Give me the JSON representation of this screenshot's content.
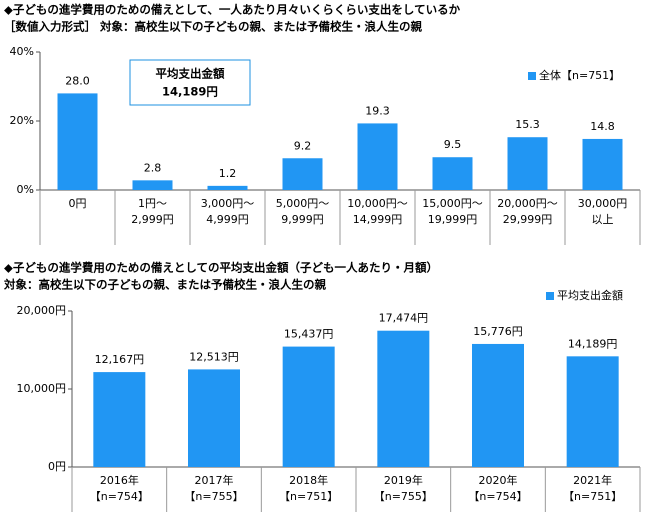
{
  "chart_data": [
    {
      "type": "bar",
      "title": "◆子どもの進学費用のための備えとして、一人あたり月々いくらくらい支出をしているか",
      "subtitle": "［数値入力形式］ 対象：高校生以下の子どもの親、または予備校生・浪人生の親",
      "categories": [
        [
          "0円"
        ],
        [
          "1円～",
          "2,999円"
        ],
        [
          "3,000円～",
          "4,999円"
        ],
        [
          "5,000円～",
          "9,999円"
        ],
        [
          "10,000円～",
          "14,999円"
        ],
        [
          "15,000円～",
          "19,999円"
        ],
        [
          "20,000円～",
          "29,999円"
        ],
        [
          "30,000円",
          "以上"
        ]
      ],
      "series": [
        {
          "name": "全体【n=751】",
          "color": "#2196f3",
          "values": [
            28.0,
            2.8,
            1.2,
            9.2,
            19.3,
            9.5,
            15.3,
            14.8
          ],
          "value_labels": [
            "28.0",
            "2.8",
            "1.2",
            "9.2",
            "19.3",
            "9.5",
            "15.3",
            "14.8"
          ]
        }
      ],
      "annotations": [
        "平均支出金額",
        "14,189円"
      ],
      "ylim": [
        0,
        40
      ],
      "yticks": [
        {
          "value": 0,
          "label": "0%"
        },
        {
          "value": 20,
          "label": "20%"
        },
        {
          "value": 40,
          "label": "40%"
        }
      ],
      "grid": false,
      "legend": "top-right"
    },
    {
      "type": "bar",
      "title": "◆子どもの進学費用のための備えとしての平均支出金額（子ども一人あたり・月額）",
      "subtitle": "対象：高校生以下の子どもの親、または予備校生・浪人生の親",
      "categories": [
        [
          "2016年",
          "【n=754】"
        ],
        [
          "2017年",
          "【n=755】"
        ],
        [
          "2018年",
          "【n=751】"
        ],
        [
          "2019年",
          "【n=755】"
        ],
        [
          "2020年",
          "【n=754】"
        ],
        [
          "2021年",
          "【n=751】"
        ]
      ],
      "series": [
        {
          "name": "平均支出金額",
          "color": "#2196f3",
          "values": [
            12167,
            12513,
            15437,
            17474,
            15776,
            14189
          ],
          "value_labels": [
            "12,167円",
            "12,513円",
            "15,437円",
            "17,474円",
            "15,776円",
            "14,189円"
          ]
        }
      ],
      "ylim": [
        0,
        20000
      ],
      "yticks": [
        {
          "value": 0,
          "label": "0円"
        },
        {
          "value": 10000,
          "label": "10,000円"
        },
        {
          "value": 20000,
          "label": "20,000円"
        }
      ],
      "grid": false,
      "legend": "top-right"
    }
  ]
}
